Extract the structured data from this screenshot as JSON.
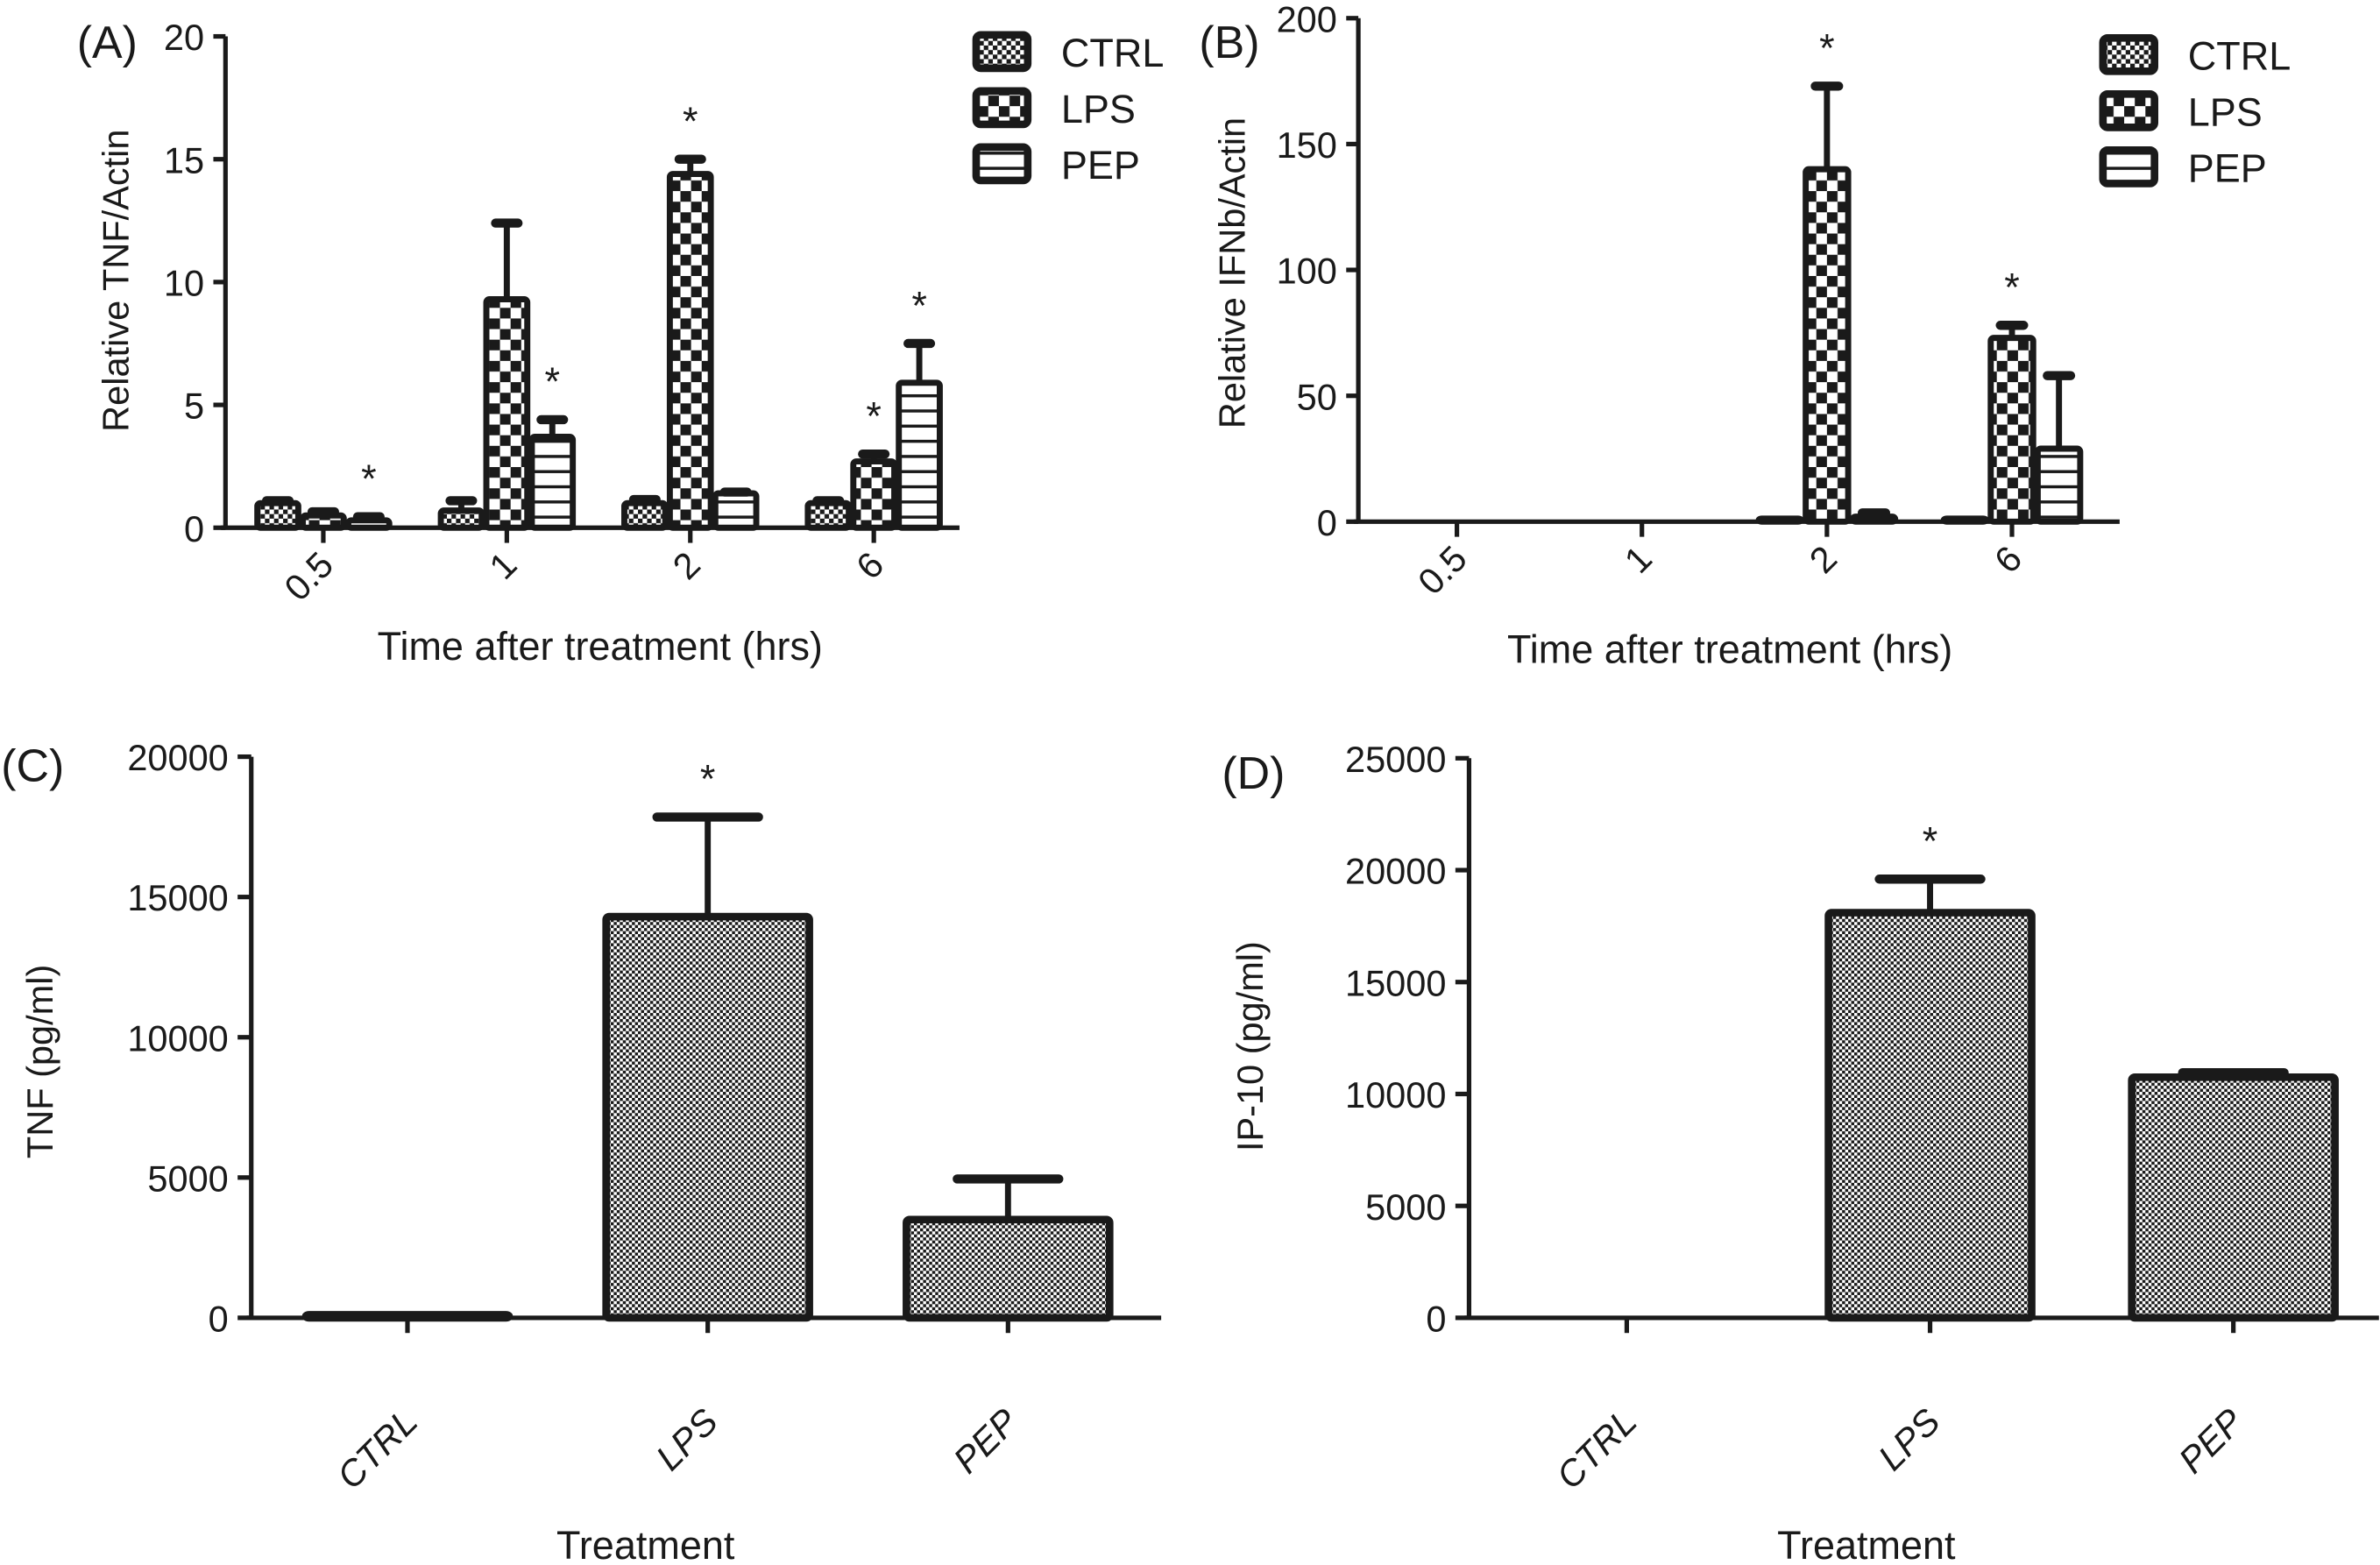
{
  "chart_data": [
    {
      "panel": "(A)",
      "type": "bar",
      "grouped": true,
      "title": "",
      "xlabel": "Time after treatment (hrs)",
      "ylabel": "Relative TNF/Actin",
      "categories": [
        "0.5",
        "1",
        "2",
        "6"
      ],
      "ylim": [
        0,
        20
      ],
      "yticks": [
        "0",
        "5",
        "10",
        "15",
        "20"
      ],
      "ytick_values": [
        0,
        5,
        10,
        15,
        20
      ],
      "grid": false,
      "legend": {
        "placement": "top-right",
        "entries": [
          "CTRL",
          "LPS",
          "PEP"
        ]
      },
      "series": [
        {
          "name": "CTRL",
          "pattern": "fine-check",
          "values": [
            1.0,
            0.7,
            1.0,
            1.0
          ],
          "errors": [
            0.1,
            0.4,
            0.15,
            0.1
          ],
          "significant": [
            false,
            false,
            false,
            false
          ]
        },
        {
          "name": "LPS",
          "pattern": "coarse-check",
          "values": [
            0.5,
            9.3,
            14.4,
            2.7
          ],
          "errors": [
            0.15,
            3.1,
            0.6,
            0.3
          ],
          "significant": [
            false,
            false,
            true,
            true
          ]
        },
        {
          "name": "PEP",
          "pattern": "h-lines",
          "values": [
            0.3,
            3.7,
            1.4,
            5.9
          ],
          "errors": [
            0.15,
            0.7,
            0.05,
            1.6
          ],
          "significant": [
            true,
            true,
            false,
            true
          ]
        }
      ],
      "significance_marker": "*"
    },
    {
      "panel": "(B)",
      "type": "bar",
      "grouped": true,
      "title": "",
      "xlabel": "Time after treatment (hrs)",
      "ylabel": "Relative IFNb/Actin",
      "categories": [
        "0.5",
        "1",
        "2",
        "6"
      ],
      "ylim": [
        0,
        200
      ],
      "yticks": [
        "0",
        "50",
        "100",
        "150",
        "200"
      ],
      "ytick_values": [
        0,
        50,
        100,
        150,
        200
      ],
      "grid": false,
      "legend": {
        "placement": "top-right",
        "entries": [
          "CTRL",
          "LPS",
          "PEP"
        ]
      },
      "series": [
        {
          "name": "CTRL",
          "pattern": "fine-check",
          "values": [
            0,
            0,
            1,
            1
          ],
          "errors": [
            0,
            0,
            0,
            0
          ],
          "significant": [
            false,
            false,
            false,
            false
          ]
        },
        {
          "name": "LPS",
          "pattern": "coarse-check",
          "values": [
            0,
            0,
            140,
            73
          ],
          "errors": [
            0,
            0,
            33,
            5
          ],
          "significant": [
            false,
            false,
            true,
            true
          ]
        },
        {
          "name": "PEP",
          "pattern": "h-lines",
          "values": [
            0,
            0,
            2,
            29
          ],
          "errors": [
            0,
            0,
            1.5,
            29
          ],
          "significant": [
            false,
            false,
            false,
            false
          ]
        }
      ],
      "significance_marker": "*"
    },
    {
      "panel": "(C)",
      "type": "bar",
      "grouped": false,
      "title": "",
      "xlabel": "Treatment",
      "ylabel": "TNF (pg/ml)",
      "categories": [
        "CTRL",
        "LPS",
        "PEP"
      ],
      "ylim": [
        0,
        20000
      ],
      "yticks": [
        "0",
        "5000",
        "10000",
        "15000",
        "20000"
      ],
      "ytick_values": [
        0,
        5000,
        10000,
        15000,
        20000
      ],
      "grid": false,
      "series": [
        {
          "name": "TNF",
          "pattern": "fine-check",
          "values": [
            50,
            14300,
            3500
          ],
          "errors": [
            0,
            3550,
            1450
          ],
          "significant": [
            false,
            true,
            false
          ]
        }
      ],
      "significance_marker": "*"
    },
    {
      "panel": "(D)",
      "type": "bar",
      "grouped": false,
      "title": "",
      "xlabel": "Treatment",
      "ylabel": "IP-10 (pg/ml)",
      "categories": [
        "CTRL",
        "LPS",
        "PEP"
      ],
      "ylim": [
        0,
        25000
      ],
      "yticks": [
        "0",
        "5000",
        "10000",
        "15000",
        "20000",
        "25000"
      ],
      "ytick_values": [
        0,
        5000,
        10000,
        15000,
        20000,
        25000
      ],
      "grid": false,
      "series": [
        {
          "name": "IP-10",
          "pattern": "fine-check",
          "values": [
            0,
            18100,
            10750
          ],
          "errors": [
            0,
            1500,
            200
          ],
          "significant": [
            false,
            true,
            false
          ]
        }
      ],
      "significance_marker": "*"
    }
  ]
}
